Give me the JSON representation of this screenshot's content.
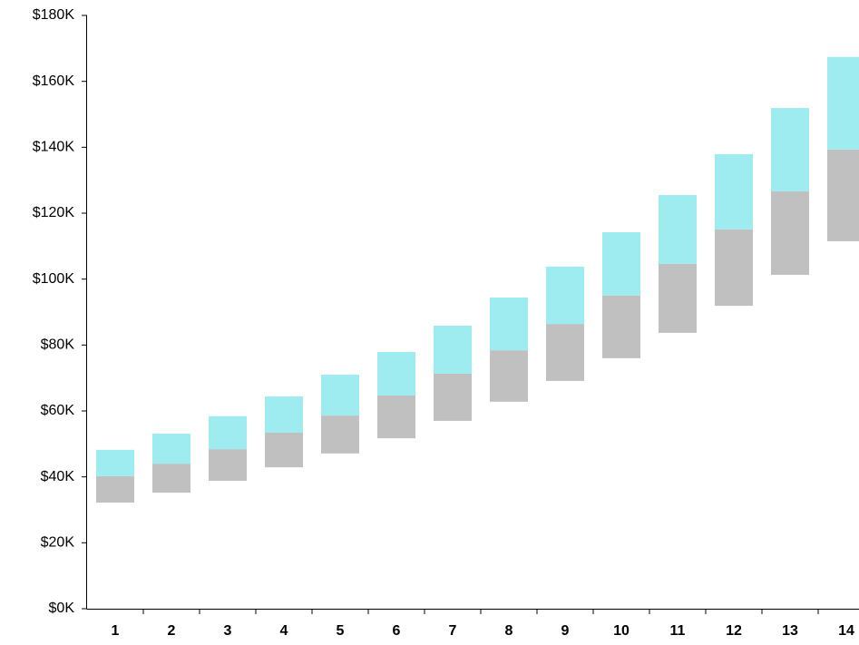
{
  "chart_data": {
    "type": "bar",
    "stacked": true,
    "categories": [
      "1",
      "2",
      "3",
      "4",
      "5",
      "6",
      "7",
      "8",
      "9",
      "10",
      "11",
      "12",
      "13",
      "14"
    ],
    "series": [
      {
        "color": "transparent",
        "values": [
          32.2,
          35.2,
          38.8,
          42.9,
          47.1,
          51.7,
          57.0,
          62.8,
          69.1,
          76.0,
          83.7,
          91.9,
          101.3,
          111.5
        ]
      },
      {
        "color": "#c0c0c0",
        "values": [
          8.0,
          8.8,
          9.6,
          10.5,
          11.5,
          13.0,
          14.3,
          15.6,
          17.3,
          19.0,
          20.9,
          23.2,
          25.3,
          27.8
        ]
      },
      {
        "color": "#9eebf0",
        "values": [
          8.0,
          9.1,
          10.0,
          11.0,
          12.4,
          13.2,
          14.6,
          16.0,
          17.4,
          19.2,
          20.9,
          22.8,
          25.3,
          28.1
        ]
      }
    ],
    "ylim": [
      0,
      180
    ],
    "yticks": [
      {
        "value": 0,
        "label": "$0K"
      },
      {
        "value": 20,
        "label": "$20K"
      },
      {
        "value": 40,
        "label": "$40K"
      },
      {
        "value": 60,
        "label": "$60K"
      },
      {
        "value": 80,
        "label": "$80K"
      },
      {
        "value": 100,
        "label": "$100K"
      },
      {
        "value": 120,
        "label": "$120K"
      },
      {
        "value": 140,
        "label": "$140K"
      },
      {
        "value": 160,
        "label": "$160K"
      },
      {
        "value": 180,
        "label": "$180K"
      }
    ],
    "grid": false
  }
}
